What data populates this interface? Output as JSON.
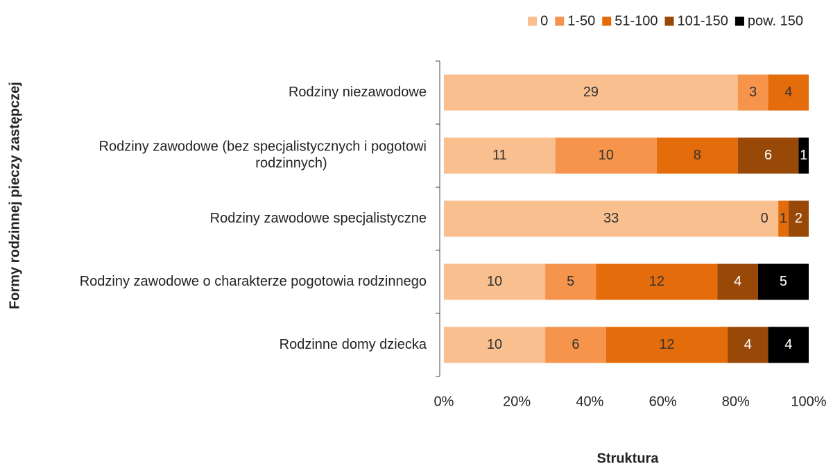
{
  "chart_data": {
    "type": "bar",
    "orientation": "horizontal",
    "stacked": "percent",
    "x_label": "Struktura",
    "y_label": "Formy rodzinnej pieczy zastępczej",
    "categories": [
      "Rodziny niezawodowe",
      "Rodziny zawodowe (bez specjalistycznych i pogotowi rodzinnych)",
      "Rodziny zawodowe specjalistyczne",
      "Rodziny zawodowe o charakterze pogotowia rodzinnego",
      "Rodzinne domy dziecka"
    ],
    "series": [
      {
        "name": "0",
        "color": "#f9bf8f",
        "values": [
          29,
          11,
          33,
          10,
          10
        ]
      },
      {
        "name": "1-50",
        "color": "#f5944a",
        "values": [
          3,
          10,
          0,
          5,
          6
        ]
      },
      {
        "name": "51-100",
        "color": "#e46c0a",
        "values": [
          4,
          8,
          1,
          12,
          12
        ]
      },
      {
        "name": "101-150",
        "color": "#984807",
        "values": [
          null,
          6,
          2,
          4,
          4
        ]
      },
      {
        "name": "pow. 150",
        "color": "#000000",
        "values": [
          null,
          1,
          null,
          5,
          4
        ]
      }
    ],
    "xlim": [
      0,
      100
    ],
    "xticks": [
      {
        "value": 0,
        "label": "0%"
      },
      {
        "value": 20,
        "label": "20%"
      },
      {
        "value": 40,
        "label": "40%"
      },
      {
        "value": 60,
        "label": "60%"
      },
      {
        "value": 80,
        "label": "80%"
      },
      {
        "value": 100,
        "label": "100%"
      }
    ],
    "legend": "top-right"
  }
}
